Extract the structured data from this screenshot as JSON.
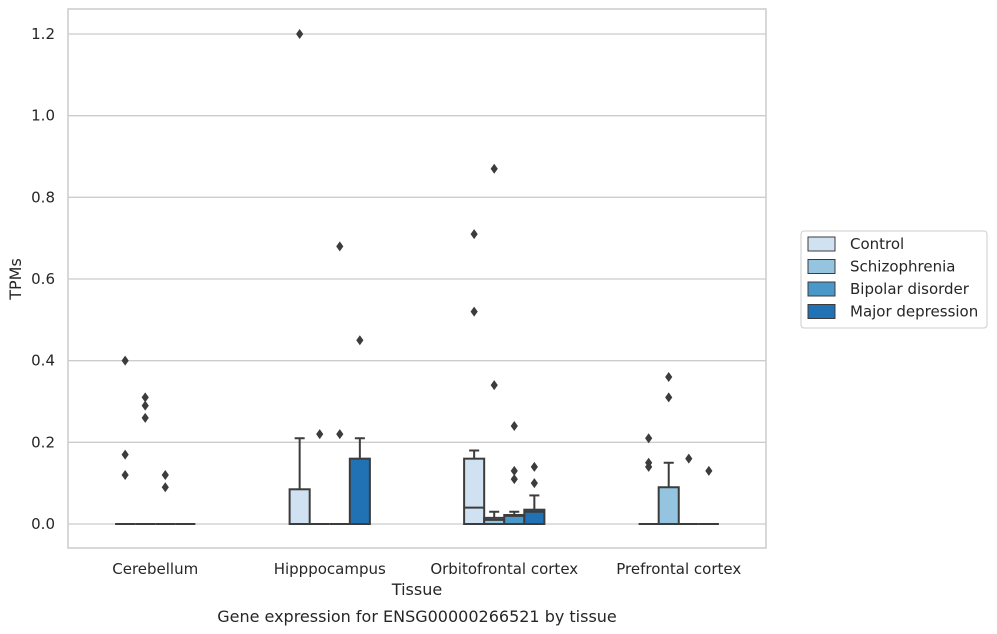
{
  "caption": "Gene expression for ENSG00000266521 by tissue",
  "colors": {
    "Control": "#d0e1f2",
    "Schizophrenia": "#94c4df",
    "Bipolar disorder": "#4a98c9",
    "Major depression": "#2171b5",
    "grid": "#cccccc",
    "box_line": "#3c3c3c"
  },
  "chart_data": {
    "type": "box",
    "title": "",
    "xlabel": "Tissue",
    "ylabel": "TPMs",
    "ylim": [
      -0.06,
      1.26
    ],
    "yticks": [
      0.0,
      0.2,
      0.4,
      0.6,
      0.8,
      1.0,
      1.2
    ],
    "ytick_labels": [
      "0.0",
      "0.2",
      "0.4",
      "0.6",
      "0.8",
      "1.0",
      "1.2"
    ],
    "grid": "horizontal",
    "legend_position": "right",
    "categories": [
      "Cerebellum",
      "Hipppocampus",
      "Orbitofrontal cortex",
      "Prefrontal cortex"
    ],
    "hue_order": [
      "Control",
      "Schizophrenia",
      "Bipolar disorder",
      "Major depression"
    ],
    "boxes": [
      {
        "category": "Cerebellum",
        "group": "Control",
        "q1": 0,
        "median": 0,
        "q3": 0,
        "whisker_low": 0,
        "whisker_high": 0,
        "outliers": [
          0.4,
          0.17,
          0.12
        ]
      },
      {
        "category": "Cerebellum",
        "group": "Schizophrenia",
        "q1": 0,
        "median": 0,
        "q3": 0,
        "whisker_low": 0,
        "whisker_high": 0,
        "outliers": [
          0.31,
          0.29,
          0.26
        ]
      },
      {
        "category": "Cerebellum",
        "group": "Bipolar disorder",
        "q1": 0,
        "median": 0,
        "q3": 0,
        "whisker_low": 0,
        "whisker_high": 0,
        "outliers": [
          0.12,
          0.09
        ]
      },
      {
        "category": "Cerebellum",
        "group": "Major depression",
        "q1": 0,
        "median": 0,
        "q3": 0,
        "whisker_low": 0,
        "whisker_high": 0,
        "outliers": []
      },
      {
        "category": "Hipppocampus",
        "group": "Control",
        "q1": 0,
        "median": 0,
        "q3": 0.085,
        "whisker_low": 0,
        "whisker_high": 0.21,
        "outliers": [
          1.2
        ]
      },
      {
        "category": "Hipppocampus",
        "group": "Schizophrenia",
        "q1": 0,
        "median": 0,
        "q3": 0,
        "whisker_low": 0,
        "whisker_high": 0,
        "outliers": [
          0.22
        ]
      },
      {
        "category": "Hipppocampus",
        "group": "Bipolar disorder",
        "q1": 0,
        "median": 0,
        "q3": 0,
        "whisker_low": 0,
        "whisker_high": 0,
        "outliers": [
          0.68,
          0.22
        ]
      },
      {
        "category": "Hipppocampus",
        "group": "Major depression",
        "q1": 0,
        "median": 0,
        "q3": 0.16,
        "whisker_low": 0,
        "whisker_high": 0.21,
        "outliers": [
          0.45
        ]
      },
      {
        "category": "Orbitofrontal cortex",
        "group": "Control",
        "q1": 0,
        "median": 0.04,
        "q3": 0.16,
        "whisker_low": 0,
        "whisker_high": 0.18,
        "outliers": [
          0.71,
          0.52
        ]
      },
      {
        "category": "Orbitofrontal cortex",
        "group": "Schizophrenia",
        "q1": 0,
        "median": 0.01,
        "q3": 0.015,
        "whisker_low": 0,
        "whisker_high": 0.03,
        "outliers": [
          0.87,
          0.34
        ]
      },
      {
        "category": "Orbitofrontal cortex",
        "group": "Bipolar disorder",
        "q1": 0,
        "median": 0.02,
        "q3": 0.022,
        "whisker_low": 0,
        "whisker_high": 0.03,
        "outliers": [
          0.24,
          0.13,
          0.11
        ]
      },
      {
        "category": "Orbitofrontal cortex",
        "group": "Major depression",
        "q1": 0,
        "median": 0.03,
        "q3": 0.035,
        "whisker_low": 0,
        "whisker_high": 0.07,
        "outliers": [
          0.14,
          0.1
        ]
      },
      {
        "category": "Prefrontal cortex",
        "group": "Control",
        "q1": 0,
        "median": 0,
        "q3": 0,
        "whisker_low": 0,
        "whisker_high": 0,
        "outliers": [
          0.21,
          0.15,
          0.14
        ]
      },
      {
        "category": "Prefrontal cortex",
        "group": "Schizophrenia",
        "q1": 0,
        "median": 0,
        "q3": 0.09,
        "whisker_low": 0,
        "whisker_high": 0.15,
        "outliers": [
          0.36,
          0.31
        ]
      },
      {
        "category": "Prefrontal cortex",
        "group": "Bipolar disorder",
        "q1": 0,
        "median": 0,
        "q3": 0,
        "whisker_low": 0,
        "whisker_high": 0,
        "outliers": [
          0.16
        ]
      },
      {
        "category": "Prefrontal cortex",
        "group": "Major depression",
        "q1": 0,
        "median": 0,
        "q3": 0,
        "whisker_low": 0,
        "whisker_high": 0,
        "outliers": [
          0.13
        ]
      }
    ]
  }
}
